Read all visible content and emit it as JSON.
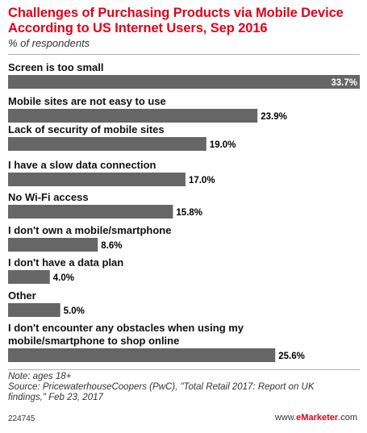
{
  "title": "Challenges of Purchasing Products via Mobile Device According to US Internet Users, Sep 2016",
  "subtitle": "% of respondents",
  "notes": {
    "note": "Note: ages 18+",
    "source": "Source: PricewaterhouseCoopers (PwC), \"Total Retail 2017: Report on UK findings,\" Feb 23, 2017"
  },
  "footer": {
    "chart_id": "224745",
    "brand_prefix": "www.",
    "brand_name": "eMarketer",
    "brand_suffix": ".com"
  },
  "colors": {
    "title": "#e2001a",
    "bar": "#666666",
    "value_on_bar": "#ffffff",
    "value_outside": "#000000"
  },
  "chart_data": {
    "type": "bar",
    "orientation": "horizontal",
    "title": "Challenges of Purchasing Products via Mobile Device According to US Internet Users, Sep 2016",
    "subtitle": "% of respondents",
    "categories": [
      "Screen is too small",
      "Mobile sites are not easy to use",
      "Lack of security of mobile sites",
      "I have a slow data connection",
      "No Wi-Fi access",
      "I don't own a mobile/smartphone",
      "I don't have a data plan",
      "Other",
      "I don't encounter any obstacles when using my mobile/smartphone to shop online"
    ],
    "values": [
      33.7,
      23.9,
      19.0,
      17.0,
      15.8,
      8.6,
      4.0,
      5.0,
      25.6
    ],
    "value_labels": [
      "33.7%",
      "23.9%",
      "19.0%",
      "17.0%",
      "15.8%",
      "8.6%",
      "4.0%",
      "5.0%",
      "25.6%"
    ],
    "xlim": [
      0,
      33.7
    ],
    "grid": false,
    "legend": "none"
  }
}
